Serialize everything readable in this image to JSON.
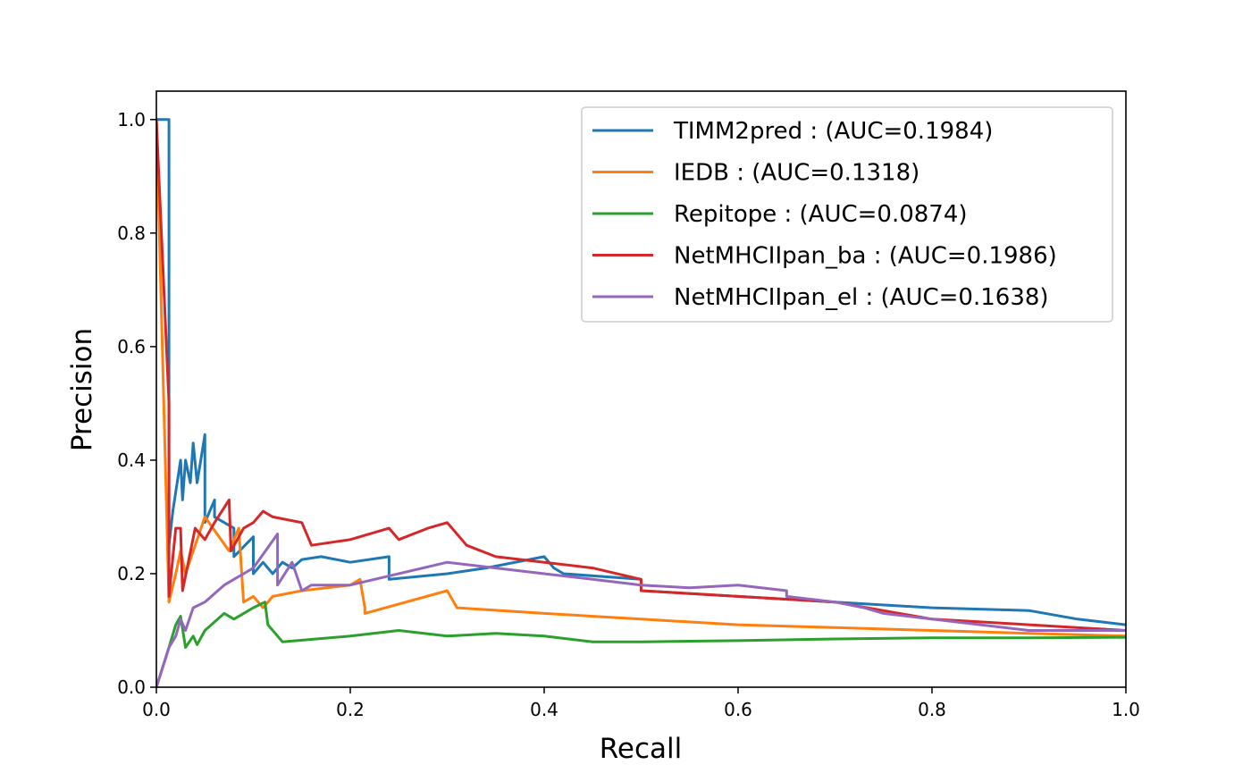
{
  "chart_data": {
    "type": "line",
    "title": "",
    "xlabel": "Recall",
    "ylabel": "Precision",
    "xlim": [
      0.0,
      1.0
    ],
    "ylim": [
      0.0,
      1.05
    ],
    "xticks": [
      "0.0",
      "0.2",
      "0.4",
      "0.6",
      "0.8",
      "1.0"
    ],
    "yticks": [
      "0.0",
      "0.2",
      "0.4",
      "0.6",
      "0.8",
      "1.0"
    ],
    "grid": false,
    "legend_position": "upper-right",
    "series": [
      {
        "name": "TIMM2pred : (AUC=0.1984)",
        "color": "#1f77b4",
        "x": [
          0.0,
          0.0,
          0.013,
          0.013,
          0.017,
          0.025,
          0.027,
          0.03,
          0.035,
          0.038,
          0.042,
          0.05,
          0.05,
          0.06,
          0.06,
          0.08,
          0.08,
          0.1,
          0.1,
          0.11,
          0.12,
          0.13,
          0.14,
          0.15,
          0.17,
          0.2,
          0.24,
          0.24,
          0.3,
          0.34,
          0.4,
          0.41,
          0.42,
          0.5,
          0.5,
          0.6,
          0.7,
          0.8,
          0.9,
          0.95,
          1.0
        ],
        "y": [
          1.0,
          1.0,
          1.0,
          0.25,
          0.31,
          0.4,
          0.33,
          0.4,
          0.36,
          0.43,
          0.36,
          0.445,
          0.29,
          0.33,
          0.3,
          0.28,
          0.23,
          0.265,
          0.2,
          0.22,
          0.2,
          0.22,
          0.21,
          0.225,
          0.23,
          0.22,
          0.23,
          0.19,
          0.2,
          0.21,
          0.23,
          0.21,
          0.2,
          0.19,
          0.17,
          0.16,
          0.15,
          0.14,
          0.135,
          0.12,
          0.11
        ]
      },
      {
        "name": "IEDB : (AUC=0.1318)",
        "color": "#ff7f0e",
        "x": [
          0.0,
          0.0,
          0.013,
          0.02,
          0.025,
          0.03,
          0.05,
          0.075,
          0.085,
          0.09,
          0.1,
          0.11,
          0.12,
          0.15,
          0.2,
          0.21,
          0.215,
          0.215,
          0.3,
          0.31,
          0.4,
          0.45,
          0.5,
          0.6,
          0.7,
          0.8,
          0.9,
          1.0
        ],
        "y": [
          1.0,
          1.0,
          0.15,
          0.2,
          0.24,
          0.2,
          0.3,
          0.24,
          0.28,
          0.15,
          0.16,
          0.14,
          0.16,
          0.17,
          0.18,
          0.19,
          0.14,
          0.13,
          0.17,
          0.14,
          0.13,
          0.125,
          0.12,
          0.11,
          0.105,
          0.1,
          0.095,
          0.09
        ]
      },
      {
        "name": "Repitope : (AUC=0.0874)",
        "color": "#2ca02c",
        "x": [
          0.0,
          0.013,
          0.02,
          0.025,
          0.03,
          0.038,
          0.042,
          0.05,
          0.07,
          0.08,
          0.1,
          0.112,
          0.115,
          0.13,
          0.2,
          0.25,
          0.3,
          0.35,
          0.4,
          0.45,
          0.5,
          0.6,
          0.7,
          0.8,
          0.9,
          1.0
        ],
        "y": [
          0.0,
          0.07,
          0.11,
          0.125,
          0.07,
          0.09,
          0.075,
          0.1,
          0.13,
          0.12,
          0.14,
          0.15,
          0.11,
          0.08,
          0.09,
          0.1,
          0.09,
          0.095,
          0.09,
          0.08,
          0.08,
          0.082,
          0.085,
          0.087,
          0.087,
          0.088
        ]
      },
      {
        "name": "NetMHCIIpan_ba : (AUC=0.1986)",
        "color": "#d62728",
        "x": [
          0.0,
          0.0,
          0.013,
          0.013,
          0.02,
          0.025,
          0.027,
          0.04,
          0.05,
          0.06,
          0.075,
          0.077,
          0.09,
          0.1,
          0.11,
          0.12,
          0.15,
          0.16,
          0.2,
          0.24,
          0.25,
          0.28,
          0.3,
          0.32,
          0.35,
          0.4,
          0.45,
          0.5,
          0.5,
          0.6,
          0.7,
          0.8,
          0.9,
          1.0
        ],
        "y": [
          1.0,
          1.0,
          0.5,
          0.16,
          0.28,
          0.28,
          0.17,
          0.28,
          0.26,
          0.29,
          0.33,
          0.24,
          0.28,
          0.29,
          0.31,
          0.3,
          0.29,
          0.25,
          0.26,
          0.28,
          0.26,
          0.28,
          0.29,
          0.25,
          0.23,
          0.22,
          0.21,
          0.19,
          0.17,
          0.16,
          0.15,
          0.12,
          0.11,
          0.1
        ]
      },
      {
        "name": "NetMHCIIpan_el : (AUC=0.1638)",
        "color": "#9467bd",
        "x": [
          0.0,
          0.013,
          0.02,
          0.025,
          0.03,
          0.038,
          0.05,
          0.07,
          0.08,
          0.09,
          0.1,
          0.125,
          0.125,
          0.14,
          0.15,
          0.16,
          0.2,
          0.3,
          0.35,
          0.4,
          0.45,
          0.5,
          0.55,
          0.6,
          0.65,
          0.65,
          0.7,
          0.73,
          0.75,
          0.8,
          0.9,
          1.0
        ],
        "y": [
          0.0,
          0.07,
          0.09,
          0.12,
          0.1,
          0.14,
          0.15,
          0.18,
          0.19,
          0.2,
          0.21,
          0.27,
          0.18,
          0.22,
          0.17,
          0.18,
          0.18,
          0.22,
          0.21,
          0.2,
          0.19,
          0.18,
          0.175,
          0.18,
          0.17,
          0.16,
          0.15,
          0.14,
          0.13,
          0.12,
          0.1,
          0.1
        ]
      }
    ]
  }
}
